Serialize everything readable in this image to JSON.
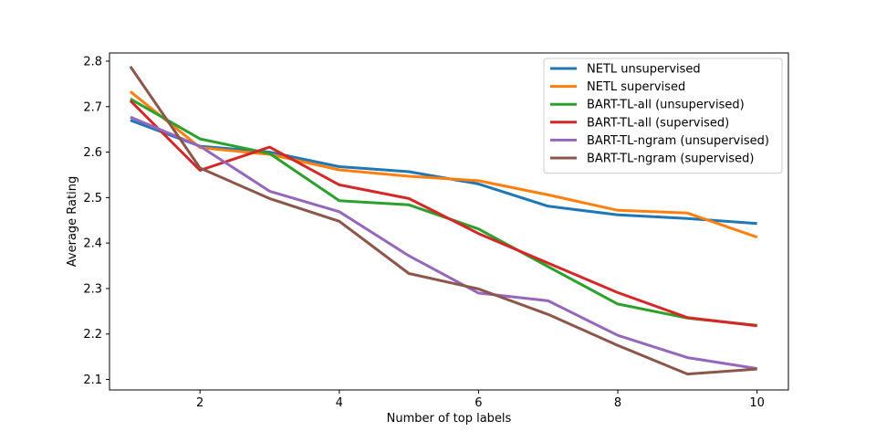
{
  "chart_data": {
    "type": "line",
    "title": "",
    "xlabel": "Number of top labels",
    "ylabel": "Average Rating",
    "xlim": [
      0.7,
      10.45
    ],
    "ylim": [
      2.077,
      2.818
    ],
    "x_ticks": [
      2,
      4,
      6,
      8,
      10
    ],
    "x_tick_labels": [
      "2",
      "4",
      "6",
      "8",
      "10"
    ],
    "y_ticks": [
      2.1,
      2.2,
      2.3,
      2.4,
      2.5,
      2.6,
      2.7,
      2.8
    ],
    "y_tick_labels": [
      "2.1",
      "2.2",
      "2.3",
      "2.4",
      "2.5",
      "2.6",
      "2.7",
      "2.8"
    ],
    "grid": false,
    "legend_position": "top-right",
    "x": [
      1,
      2,
      3,
      4,
      5,
      6,
      7,
      8,
      9,
      10
    ],
    "series": [
      {
        "name": "NETL unsupervised",
        "color": "#1f77b4",
        "values": [
          2.67,
          2.613,
          2.6,
          2.568,
          2.557,
          2.53,
          2.481,
          2.462,
          2.454,
          2.443
        ]
      },
      {
        "name": "NETL supervised",
        "color": "#ff7f0e",
        "values": [
          2.733,
          2.61,
          2.595,
          2.561,
          2.547,
          2.537,
          2.506,
          2.472,
          2.466,
          2.413
        ]
      },
      {
        "name": "BART-TL-all (unsupervised)",
        "color": "#2ca02c",
        "values": [
          2.717,
          2.629,
          2.597,
          2.493,
          2.484,
          2.431,
          2.348,
          2.266,
          2.235,
          2.219
        ]
      },
      {
        "name": "BART-TL-all (supervised)",
        "color": "#d62728",
        "values": [
          2.713,
          2.56,
          2.611,
          2.528,
          2.498,
          2.421,
          2.356,
          2.291,
          2.236,
          2.218
        ]
      },
      {
        "name": "BART-TL-ngram (unsupervised)",
        "color": "#9467bd",
        "values": [
          2.677,
          2.613,
          2.514,
          2.469,
          2.372,
          2.29,
          2.273,
          2.197,
          2.148,
          2.124
        ]
      },
      {
        "name": "BART-TL-ngram (supervised)",
        "color": "#8c564b",
        "values": [
          2.788,
          2.565,
          2.498,
          2.448,
          2.333,
          2.299,
          2.243,
          2.175,
          2.112,
          2.123
        ]
      }
    ]
  }
}
